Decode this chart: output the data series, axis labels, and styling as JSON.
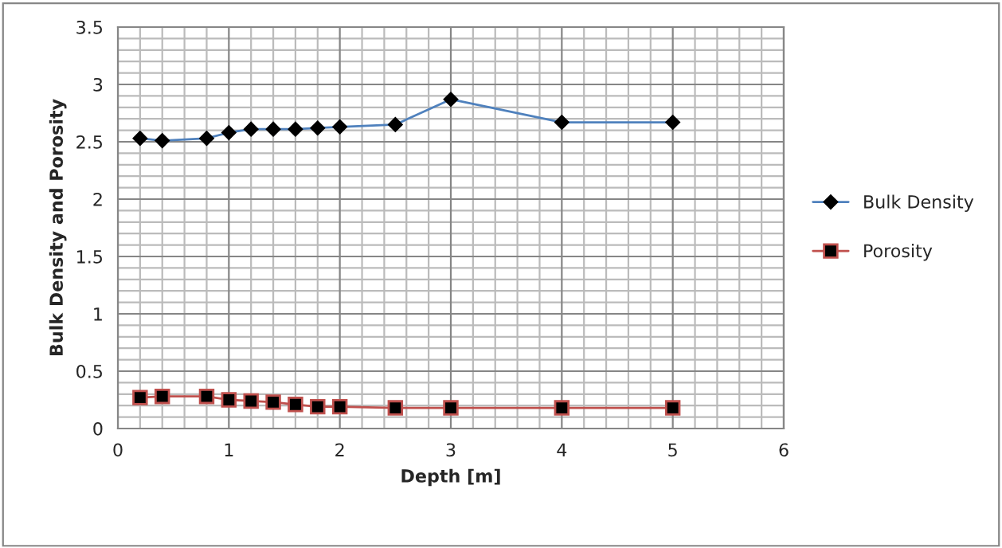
{
  "chart_data": {
    "type": "line",
    "xlabel": "Depth [m]",
    "ylabel": "Bulk Density and Porosity",
    "xlim": [
      0,
      6
    ],
    "xticks": [
      0,
      1,
      2,
      3,
      4,
      5,
      6
    ],
    "ylim": [
      0,
      3.5
    ],
    "yticks": [
      0,
      0.5,
      1,
      1.5,
      2,
      2.5,
      3,
      3.5
    ],
    "x": [
      0.2,
      0.4,
      0.8,
      1.0,
      1.2,
      1.4,
      1.6,
      1.8,
      2.0,
      2.5,
      3,
      4,
      5
    ],
    "series": [
      {
        "name": "Bulk Density",
        "color": "#4f81bd",
        "marker": "diamond",
        "values": [
          2.53,
          2.51,
          2.53,
          2.58,
          2.61,
          2.61,
          2.61,
          2.62,
          2.63,
          2.65,
          2.87,
          2.67,
          2.67
        ]
      },
      {
        "name": "Porosity",
        "color": "#c0504d",
        "marker": "square",
        "values": [
          0.27,
          0.28,
          0.28,
          0.25,
          0.24,
          0.23,
          0.21,
          0.19,
          0.19,
          0.18,
          0.18,
          0.18,
          0.18
        ]
      }
    ],
    "grid": true,
    "legend": "right"
  }
}
